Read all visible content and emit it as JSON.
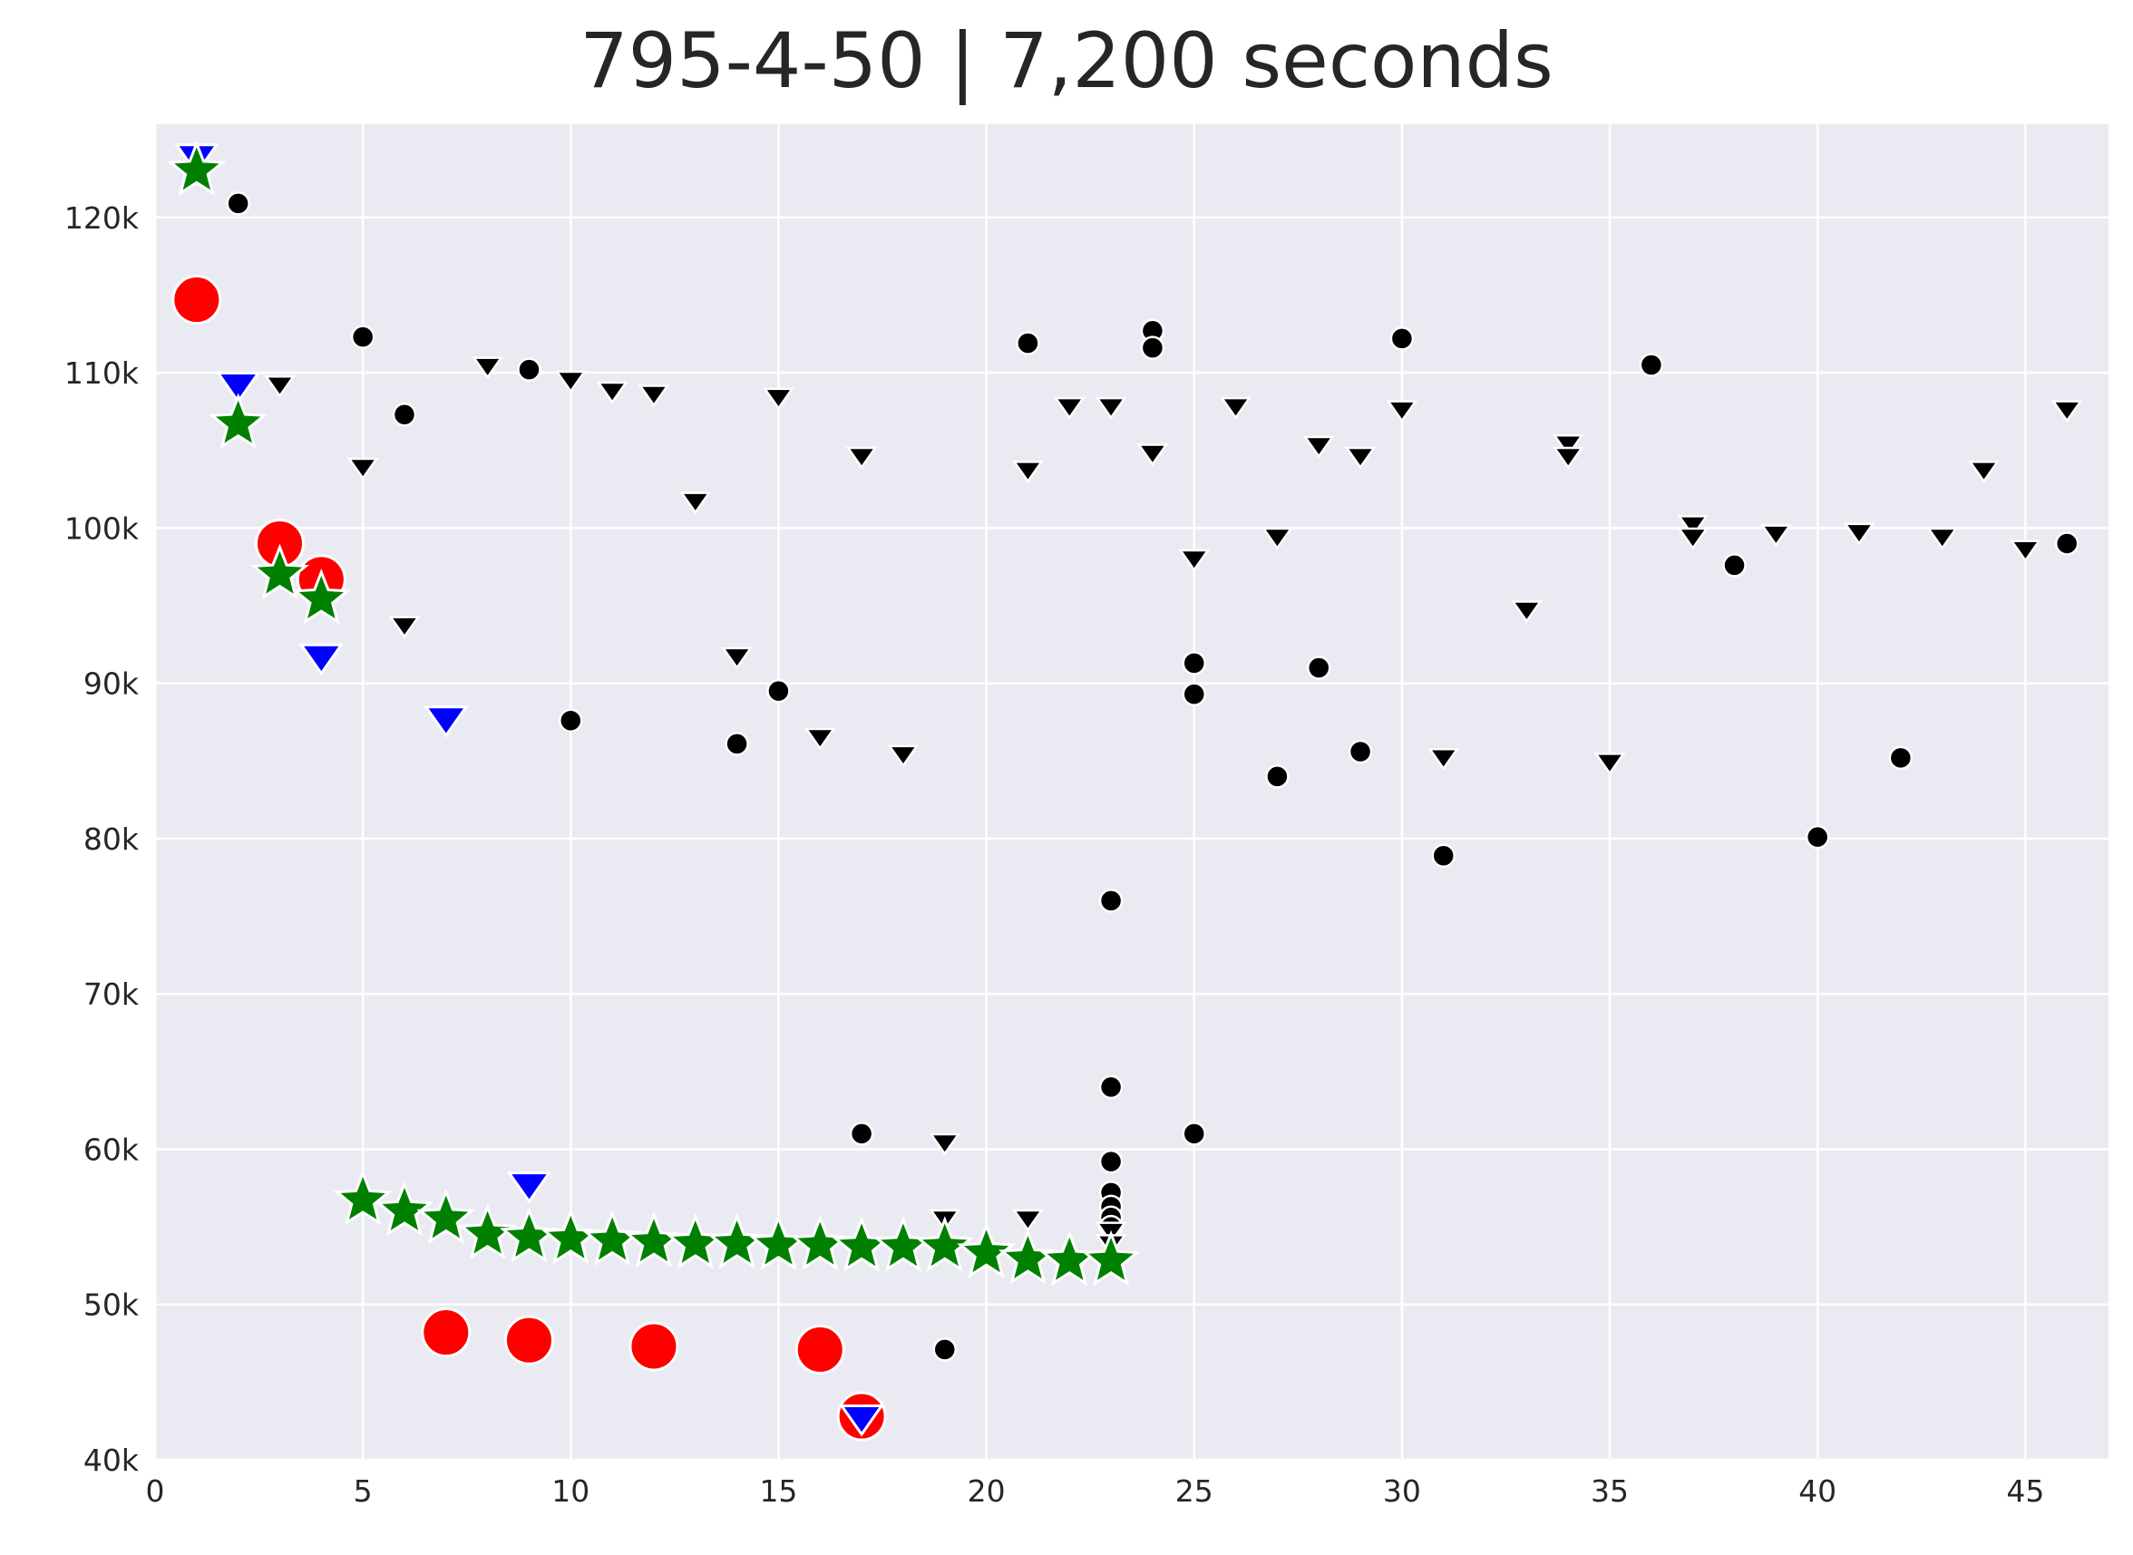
{
  "chart_data": {
    "type": "scatter",
    "title": "795-4-50 | 7,200 seconds",
    "xlabel": "",
    "ylabel": "",
    "xlim": [
      0,
      47
    ],
    "ylim": [
      40000,
      126000
    ],
    "grid": true,
    "x_ticks": [
      0,
      5,
      10,
      15,
      20,
      25,
      30,
      35,
      40,
      45
    ],
    "x_tick_labels": [
      "0",
      "5",
      "10",
      "15",
      "20",
      "25",
      "30",
      "35",
      "40",
      "45"
    ],
    "y_ticks": [
      40000,
      50000,
      60000,
      70000,
      80000,
      90000,
      100000,
      110000,
      120000
    ],
    "y_tick_labels": [
      "40k",
      "50k",
      "60k",
      "70k",
      "80k",
      "90k",
      "100k",
      "110k",
      "120k"
    ],
    "colors": {
      "background": "#eaeaf2",
      "grid": "#ffffff",
      "black": "#000000",
      "red": "#ff0000",
      "blue": "#0000ff",
      "green": "#008000"
    },
    "series": [
      {
        "marker": "circle-small",
        "color": "#000000",
        "points": [
          [
            2,
            120900
          ],
          [
            5,
            112300
          ],
          [
            6,
            107300
          ],
          [
            9,
            110200
          ],
          [
            10,
            87600
          ],
          [
            14,
            86100
          ],
          [
            15,
            89500
          ],
          [
            17,
            61000
          ],
          [
            19,
            47100
          ],
          [
            21,
            111900
          ],
          [
            23,
            76000
          ],
          [
            23,
            64000
          ],
          [
            23,
            59200
          ],
          [
            23,
            57200
          ],
          [
            23,
            56300
          ],
          [
            23,
            55600
          ],
          [
            23,
            55000
          ],
          [
            24,
            112700
          ],
          [
            24,
            111600
          ],
          [
            25,
            91300
          ],
          [
            25,
            89300
          ],
          [
            25,
            61000
          ],
          [
            27,
            84000
          ],
          [
            28,
            91000
          ],
          [
            29,
            85600
          ],
          [
            30,
            112200
          ],
          [
            31,
            78900
          ],
          [
            36,
            110500
          ],
          [
            38,
            97600
          ],
          [
            40,
            80100
          ],
          [
            42,
            85200
          ],
          [
            46,
            99000
          ]
        ]
      },
      {
        "marker": "triangle-down-small",
        "color": "#000000",
        "points": [
          [
            3,
            109300
          ],
          [
            5,
            104000
          ],
          [
            6,
            93800
          ],
          [
            8,
            110500
          ],
          [
            10,
            109600
          ],
          [
            11,
            108900
          ],
          [
            12,
            108700
          ],
          [
            13,
            101800
          ],
          [
            14,
            91800
          ],
          [
            15,
            108500
          ],
          [
            16,
            86600
          ],
          [
            17,
            104700
          ],
          [
            18,
            85500
          ],
          [
            19,
            60500
          ],
          [
            19,
            55600
          ],
          [
            21,
            103800
          ],
          [
            21,
            55600
          ],
          [
            22,
            107900
          ],
          [
            23,
            107900
          ],
          [
            23,
            54800
          ],
          [
            23,
            54000
          ],
          [
            24,
            104900
          ],
          [
            25,
            98100
          ],
          [
            26,
            107900
          ],
          [
            27,
            99500
          ],
          [
            28,
            105400
          ],
          [
            29,
            104700
          ],
          [
            30,
            107700
          ],
          [
            31,
            85300
          ],
          [
            33,
            94800
          ],
          [
            34,
            105500
          ],
          [
            34,
            104700
          ],
          [
            35,
            85000
          ],
          [
            37,
            100300
          ],
          [
            37,
            99500
          ],
          [
            39,
            99700
          ],
          [
            41,
            99800
          ],
          [
            43,
            99500
          ],
          [
            44,
            103800
          ],
          [
            45,
            98700
          ],
          [
            46,
            107700
          ]
        ]
      },
      {
        "marker": "circle-large",
        "color": "#ff0000",
        "points": [
          [
            1,
            114700
          ],
          [
            3,
            99000
          ],
          [
            4,
            96700
          ],
          [
            7,
            48200
          ],
          [
            9,
            47700
          ],
          [
            12,
            47300
          ],
          [
            16,
            47100
          ],
          [
            17,
            42800
          ]
        ]
      },
      {
        "marker": "triangle-down-large",
        "color": "#0000ff",
        "points": [
          [
            1,
            124000
          ],
          [
            2,
            109300
          ],
          [
            4,
            91800
          ],
          [
            7,
            87800
          ],
          [
            9,
            57800
          ],
          [
            17,
            42800
          ]
        ]
      },
      {
        "marker": "star",
        "color": "#008000",
        "points": [
          [
            1,
            123000
          ],
          [
            2,
            106700
          ],
          [
            3,
            97000
          ],
          [
            4,
            95400
          ],
          [
            5,
            56700
          ],
          [
            6,
            56000
          ],
          [
            7,
            55500
          ],
          [
            8,
            54500
          ],
          [
            9,
            54300
          ],
          [
            10,
            54200
          ],
          [
            11,
            54100
          ],
          [
            12,
            54000
          ],
          [
            13,
            53900
          ],
          [
            14,
            53900
          ],
          [
            15,
            53800
          ],
          [
            16,
            53800
          ],
          [
            17,
            53700
          ],
          [
            18,
            53700
          ],
          [
            19,
            53700
          ],
          [
            20,
            53300
          ],
          [
            21,
            52900
          ],
          [
            22,
            52800
          ],
          [
            23,
            52800
          ]
        ]
      }
    ]
  }
}
